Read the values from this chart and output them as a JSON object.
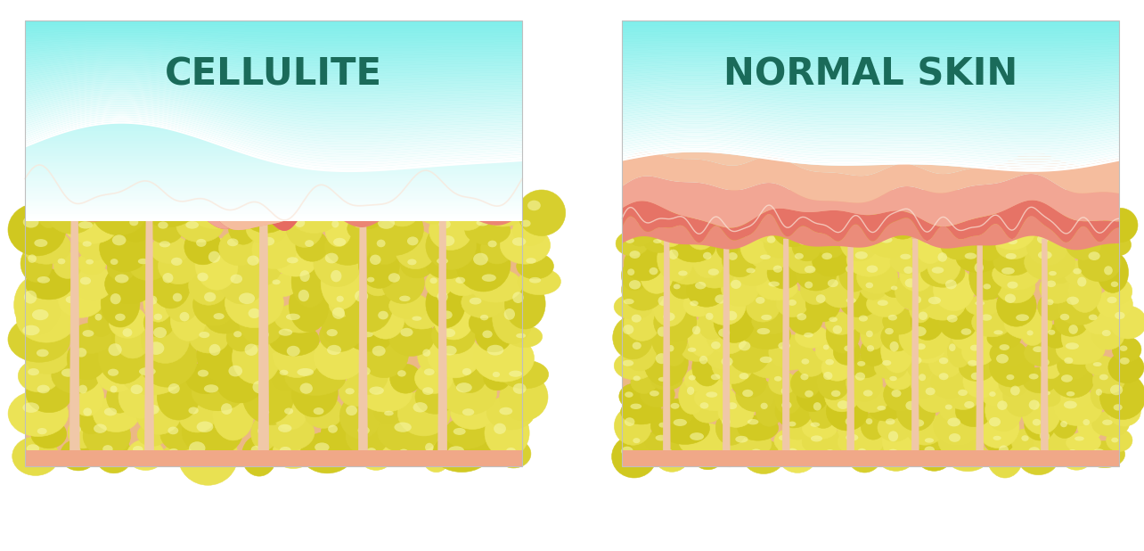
{
  "title_left": "CELLULITE",
  "title_right": "NORMAL SKIN",
  "title_color": "#1a6b5a",
  "title_fontsize": 30,
  "bg_color": "#ffffff",
  "sky_top": "#7eeeea",
  "sky_bot": "#ffffff",
  "peach_outer": "#f5a880",
  "peach_mid": "#f09070",
  "pink_dermis": "#f08070",
  "red_dermis": "#e86055",
  "pink_light": "#f8b098",
  "fat_olive": "#c8c010",
  "fat_yellow": "#e0d840",
  "fat_light": "#f0e860",
  "septa_color": "#f0c8a8",
  "septa_edge": "#e8b090",
  "bottom_pink": "#f0a888"
}
